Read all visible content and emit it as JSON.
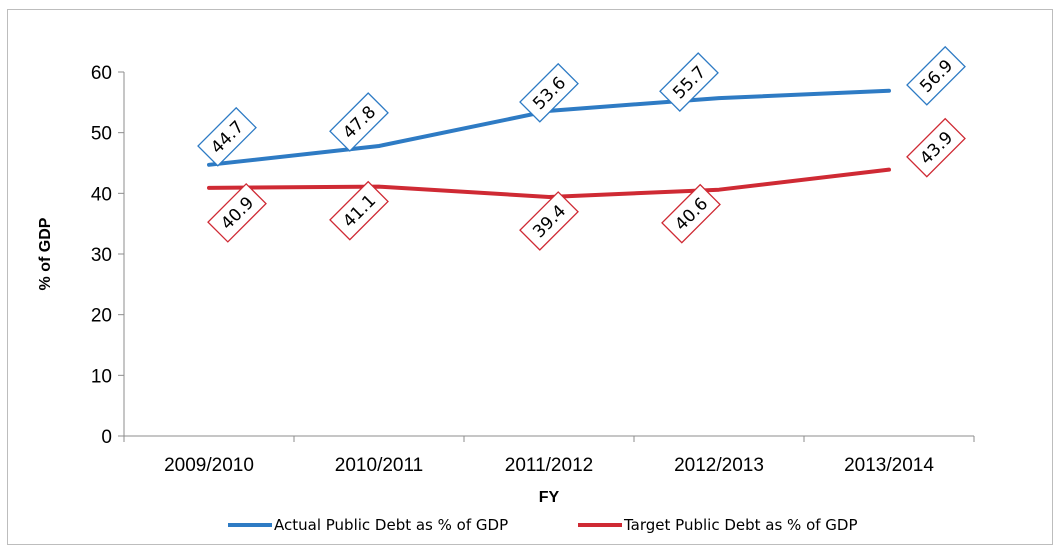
{
  "chart_data": {
    "type": "line",
    "title": "",
    "xlabel": "FY",
    "ylabel": "% of GDP",
    "categories": [
      "2009/2010",
      "2010/2011",
      "2011/2012",
      "2012/2013",
      "2013/2014"
    ],
    "ylim": [
      0,
      60
    ],
    "yticks": [
      0,
      10,
      20,
      30,
      40,
      50,
      60
    ],
    "grid": false,
    "legend_position": "bottom",
    "series": [
      {
        "name": "Actual Public Debt as % of GDP",
        "color": "#2e7bc4",
        "values": [
          44.7,
          47.8,
          53.6,
          55.7,
          56.9
        ],
        "labels": [
          "44.7",
          "47.8",
          "53.6",
          "55.7",
          "56.9"
        ]
      },
      {
        "name": "Target Public Debt as % of GDP",
        "color": "#cf2a34",
        "values": [
          40.9,
          41.1,
          39.4,
          40.6,
          43.9
        ],
        "labels": [
          "40.9",
          "41.1",
          "39.4",
          "40.6",
          "43.9"
        ]
      }
    ]
  }
}
